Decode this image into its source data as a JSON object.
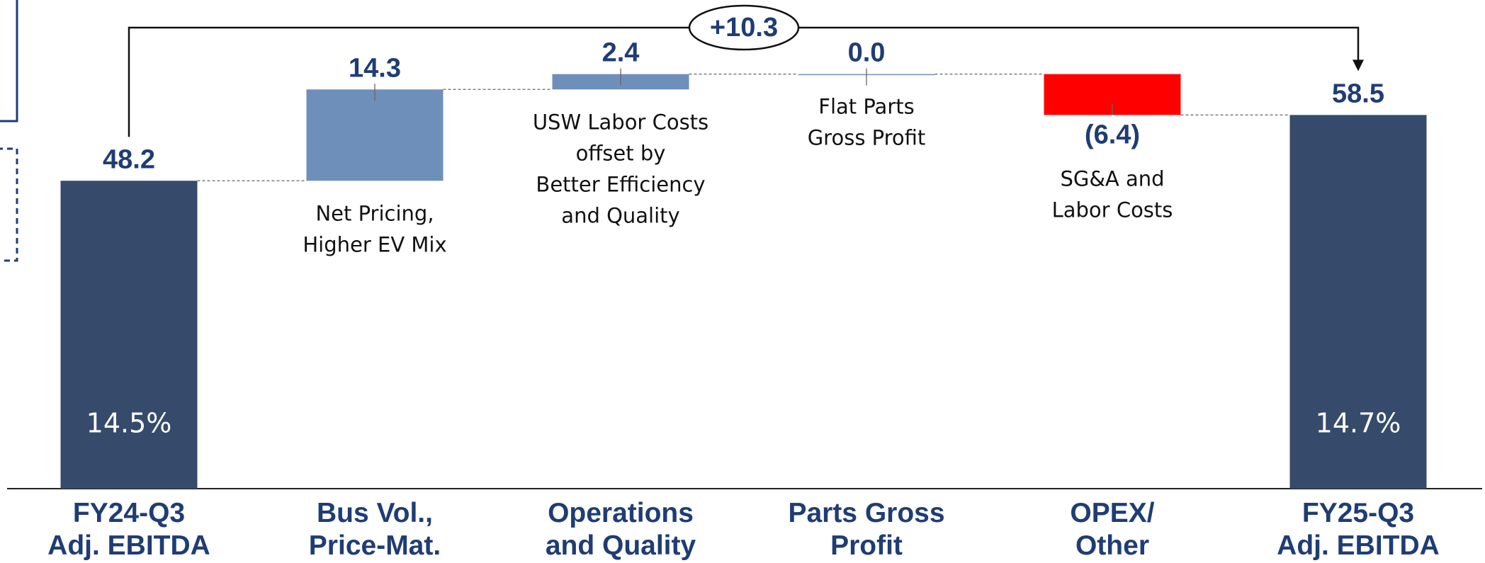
{
  "chart_data": {
    "type": "waterfall",
    "categories": [
      [
        "FY24-Q3",
        "Adj. EBITDA"
      ],
      [
        "Bus Vol.,",
        "Price-Mat."
      ],
      [
        "Operations",
        "and Quality"
      ],
      [
        "Parts Gross",
        "Profit"
      ],
      [
        "OPEX/",
        "Other"
      ],
      [
        "FY25-Q3",
        "Adj. EBITDA"
      ]
    ],
    "values": [
      48.2,
      14.3,
      2.4,
      0.0,
      -6.4,
      58.5
    ],
    "value_labels": [
      "48.2",
      "14.3",
      "2.4",
      "0.0",
      "(6.4)",
      "58.5"
    ],
    "colors": [
      "#364b6b",
      "#6f8fbb",
      "#6f8fbb",
      "#6f8fbb",
      "#ff0000",
      "#364b6b"
    ],
    "notes": [
      null,
      [
        "Net Pricing,",
        "Higher EV Mix"
      ],
      [
        "USW Labor Costs",
        "offset by",
        "Better Efficiency",
        "and Quality"
      ],
      [
        "Flat Parts",
        "Gross Profit"
      ],
      [
        "SG&A and",
        "Labor Costs"
      ],
      null
    ],
    "margins": [
      "14.5%",
      null,
      null,
      null,
      null,
      "14.7%"
    ],
    "bridge_label": "+10.3",
    "ylim": [
      0,
      76.5
    ]
  }
}
